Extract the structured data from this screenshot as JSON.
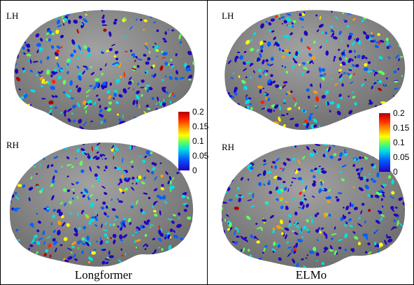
{
  "panels": [
    {
      "caption": "Longformer",
      "top_label": "LH",
      "bottom_label": "RH",
      "colorbar_ticks": [
        "0.2",
        "0.15",
        "0.1",
        "0.05",
        "0"
      ]
    },
    {
      "caption": "ELMo",
      "top_label": "LH",
      "bottom_label": "RH",
      "colorbar_ticks": [
        "0.2",
        "0.15",
        "0.1",
        "0.05",
        "0"
      ]
    }
  ],
  "colors": {
    "cortex": "#8f8f8f",
    "cortex_dark": "#6e6e6e",
    "colormap": [
      "#b00000",
      "#ff2000",
      "#ffa000",
      "#ffff00",
      "#60ff60",
      "#00e0e0",
      "#0060ff",
      "#2000c0"
    ]
  }
}
